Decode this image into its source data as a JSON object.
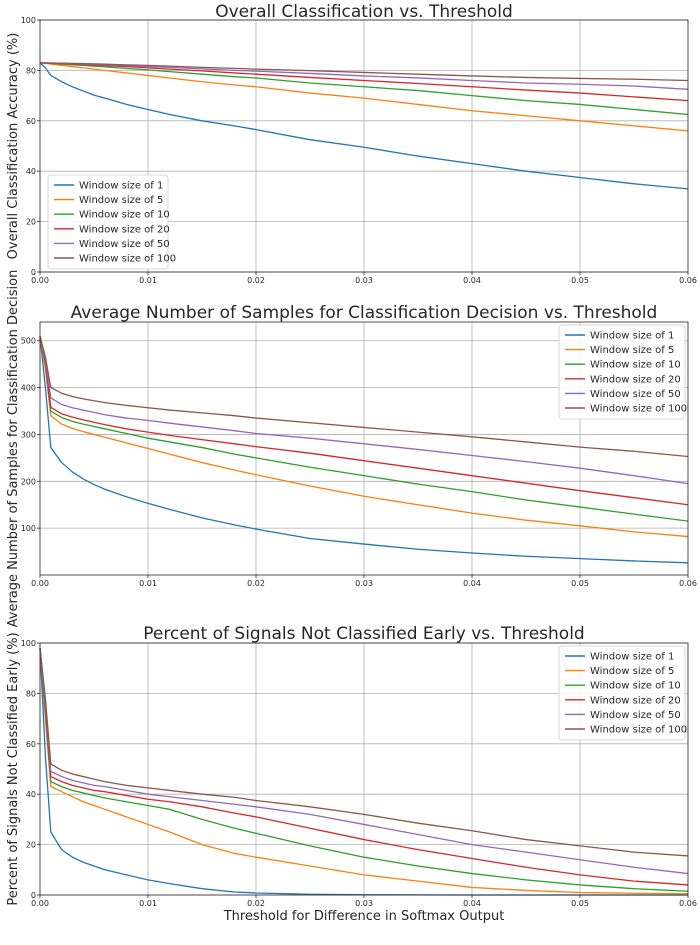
{
  "figure": {
    "xlabel": "Threshold for Difference in Softmax Output"
  },
  "chart_data": [
    {
      "type": "line",
      "title": "Overall Classification vs. Threshold",
      "xlabel": "",
      "ylabel": "Overall Classification Accuracy (%)",
      "xlim": [
        0,
        0.06
      ],
      "ylim": [
        0,
        100
      ],
      "xticks": [
        0.0,
        0.01,
        0.02,
        0.03,
        0.04,
        0.05,
        0.06
      ],
      "xtick_labels": [
        "0.00",
        "0.01",
        "0.02",
        "0.03",
        "0.04",
        "0.05",
        "0.06"
      ],
      "yticks": [
        0,
        20,
        40,
        60,
        80,
        100
      ],
      "grid": true,
      "legend_position": "lower-left",
      "x": [
        0,
        0.0005,
        0.001,
        0.002,
        0.003,
        0.004,
        0.005,
        0.006,
        0.008,
        0.01,
        0.012,
        0.015,
        0.018,
        0.02,
        0.025,
        0.03,
        0.035,
        0.04,
        0.045,
        0.05,
        0.055,
        0.06
      ],
      "series": [
        {
          "name": "Window size of 1",
          "color": "#1f77b4",
          "values": [
            83,
            81,
            78,
            75.5,
            73.5,
            71.8,
            70.2,
            69,
            66.5,
            64.5,
            62.5,
            60,
            58,
            56.5,
            52.5,
            49.5,
            46,
            43,
            40,
            37.5,
            35,
            33
          ]
        },
        {
          "name": "Window size of 5",
          "color": "#ff7f0e",
          "values": [
            83,
            82.8,
            82.5,
            82,
            81.5,
            81,
            80.5,
            80,
            79,
            78,
            77,
            75.5,
            74.2,
            73.5,
            71,
            69,
            66.5,
            64,
            62,
            60,
            58,
            56
          ]
        },
        {
          "name": "Window size of 10",
          "color": "#2ca02c",
          "values": [
            83,
            82.9,
            82.8,
            82.5,
            82.2,
            82,
            81.7,
            81.4,
            80.8,
            80.2,
            79.5,
            78.5,
            77.5,
            77,
            75,
            73.5,
            72,
            70,
            68,
            66.5,
            64.5,
            62.5
          ]
        },
        {
          "name": "Window size of 20",
          "color": "#d62728",
          "values": [
            83,
            82.95,
            82.9,
            82.7,
            82.5,
            82.3,
            82.1,
            81.9,
            81.5,
            81,
            80.5,
            79.8,
            79,
            78.5,
            77.2,
            76,
            74.8,
            73.5,
            72.2,
            71,
            69.5,
            68
          ]
        },
        {
          "name": "Window size of 50",
          "color": "#9467bd",
          "values": [
            83,
            82.95,
            82.9,
            82.8,
            82.7,
            82.5,
            82.4,
            82.2,
            81.9,
            81.5,
            81.2,
            80.6,
            80,
            79.7,
            78.8,
            77.8,
            77,
            76,
            75,
            74.5,
            73.8,
            72.5
          ]
        },
        {
          "name": "Window size of 100",
          "color": "#8c564b",
          "values": [
            83,
            83,
            82.95,
            82.9,
            82.8,
            82.7,
            82.6,
            82.5,
            82.2,
            82,
            81.7,
            81.2,
            80.8,
            80.5,
            79.9,
            79.2,
            78.5,
            77.8,
            77.2,
            76.8,
            76.5,
            76
          ]
        }
      ]
    },
    {
      "type": "line",
      "title": "Average Number of Samples for Classification Decision vs. Threshold",
      "xlabel": "",
      "ylabel": "Average Number of Samples for Classification Decision",
      "xlim": [
        0,
        0.06
      ],
      "ylim": [
        0,
        540
      ],
      "xticks": [
        0.0,
        0.01,
        0.02,
        0.03,
        0.04,
        0.05,
        0.06
      ],
      "xtick_labels": [
        "0.00",
        "0.01",
        "0.02",
        "0.03",
        "0.04",
        "0.05",
        "0.06"
      ],
      "yticks": [
        100,
        200,
        300,
        400,
        500
      ],
      "grid": true,
      "legend_position": "upper-right",
      "x": [
        0,
        0.0005,
        0.001,
        0.002,
        0.003,
        0.004,
        0.005,
        0.006,
        0.008,
        0.01,
        0.012,
        0.015,
        0.018,
        0.02,
        0.025,
        0.03,
        0.035,
        0.04,
        0.045,
        0.05,
        0.055,
        0.06
      ],
      "series": [
        {
          "name": "Window size of 1",
          "color": "#1f77b4",
          "values": [
            510,
            400,
            272,
            240,
            220,
            205,
            193,
            183,
            167,
            153,
            140,
            122,
            107,
            98,
            78,
            66,
            55,
            47,
            40,
            35,
            30,
            26
          ]
        },
        {
          "name": "Window size of 5",
          "color": "#ff7f0e",
          "values": [
            510,
            440,
            340,
            322,
            313,
            306,
            300,
            294,
            282,
            270,
            258,
            240,
            224,
            214,
            190,
            168,
            150,
            132,
            117,
            105,
            92,
            82
          ]
        },
        {
          "name": "Window size of 10",
          "color": "#2ca02c",
          "values": [
            510,
            450,
            350,
            336,
            328,
            322,
            317,
            312,
            302,
            292,
            284,
            272,
            258,
            250,
            230,
            212,
            194,
            178,
            160,
            145,
            130,
            115
          ]
        },
        {
          "name": "Window size of 20",
          "color": "#d62728",
          "values": [
            510,
            455,
            358,
            344,
            337,
            331,
            326,
            321,
            312,
            305,
            298,
            289,
            280,
            274,
            260,
            244,
            228,
            212,
            196,
            180,
            165,
            150
          ]
        },
        {
          "name": "Window size of 50",
          "color": "#9467bd",
          "values": [
            510,
            460,
            378,
            364,
            357,
            352,
            347,
            342,
            335,
            330,
            324,
            316,
            308,
            302,
            292,
            280,
            268,
            255,
            242,
            228,
            212,
            195
          ]
        },
        {
          "name": "Window size of 100",
          "color": "#8c564b",
          "values": [
            510,
            465,
            400,
            388,
            381,
            376,
            372,
            368,
            362,
            357,
            352,
            346,
            340,
            335,
            325,
            315,
            305,
            295,
            284,
            273,
            264,
            253
          ]
        }
      ]
    },
    {
      "type": "line",
      "title": "Percent of Signals Not Classified Early vs. Threshold",
      "xlabel": "Threshold for Difference in Softmax Output",
      "ylabel": "Percent of Signals Not Classified Early (%)",
      "xlim": [
        0,
        0.06
      ],
      "ylim": [
        0,
        100
      ],
      "xticks": [
        0.0,
        0.01,
        0.02,
        0.03,
        0.04,
        0.05,
        0.06
      ],
      "xtick_labels": [
        "0.00",
        "0.01",
        "0.02",
        "0.03",
        "0.04",
        "0.05",
        "0.06"
      ],
      "yticks": [
        0,
        20,
        40,
        60,
        80,
        100
      ],
      "grid": true,
      "legend_position": "upper-right",
      "x": [
        0,
        0.0005,
        0.001,
        0.002,
        0.003,
        0.004,
        0.005,
        0.006,
        0.008,
        0.01,
        0.012,
        0.015,
        0.018,
        0.02,
        0.025,
        0.03,
        0.035,
        0.04,
        0.045,
        0.05,
        0.055,
        0.06
      ],
      "series": [
        {
          "name": "Window size of 1",
          "color": "#1f77b4",
          "values": [
            98,
            55,
            25,
            18,
            15,
            13,
            11.5,
            10,
            8,
            6,
            4.5,
            2.5,
            1.2,
            0.8,
            0.3,
            0.1,
            0.05,
            0,
            0,
            0,
            0,
            0
          ]
        },
        {
          "name": "Window size of 5",
          "color": "#ff7f0e",
          "values": [
            98,
            70,
            43,
            41,
            39,
            37,
            35.5,
            34,
            31,
            28,
            25,
            20,
            16.5,
            15,
            11.5,
            8,
            5.5,
            3,
            1.8,
            1,
            0.7,
            0.5
          ]
        },
        {
          "name": "Window size of 10",
          "color": "#2ca02c",
          "values": [
            98,
            72,
            45,
            43,
            41.5,
            40.5,
            39.5,
            38.5,
            37,
            35.5,
            34,
            30,
            26.5,
            24.5,
            19.5,
            15,
            11.5,
            8.5,
            6,
            4,
            2.5,
            1.5
          ]
        },
        {
          "name": "Window size of 20",
          "color": "#d62728",
          "values": [
            98,
            74,
            47,
            45,
            43.5,
            42.5,
            41.5,
            41,
            39.5,
            38,
            37,
            35,
            32.5,
            31,
            26.5,
            22,
            18,
            14.5,
            11,
            8,
            5.5,
            4
          ]
        },
        {
          "name": "Window size of 50",
          "color": "#9467bd",
          "values": [
            98,
            76,
            49,
            47,
            45.5,
            44.5,
            43.5,
            43,
            41.5,
            40,
            39,
            37.5,
            36,
            35,
            32,
            28,
            24,
            20,
            17,
            14,
            11,
            8.5
          ]
        },
        {
          "name": "Window size of 100",
          "color": "#8c564b",
          "values": [
            98,
            78,
            52,
            49.5,
            48,
            47,
            46,
            45,
            43.5,
            42.5,
            41.5,
            40,
            38.8,
            37.5,
            35,
            32,
            28.5,
            25.5,
            22,
            19.5,
            17,
            15.5
          ]
        }
      ]
    }
  ]
}
